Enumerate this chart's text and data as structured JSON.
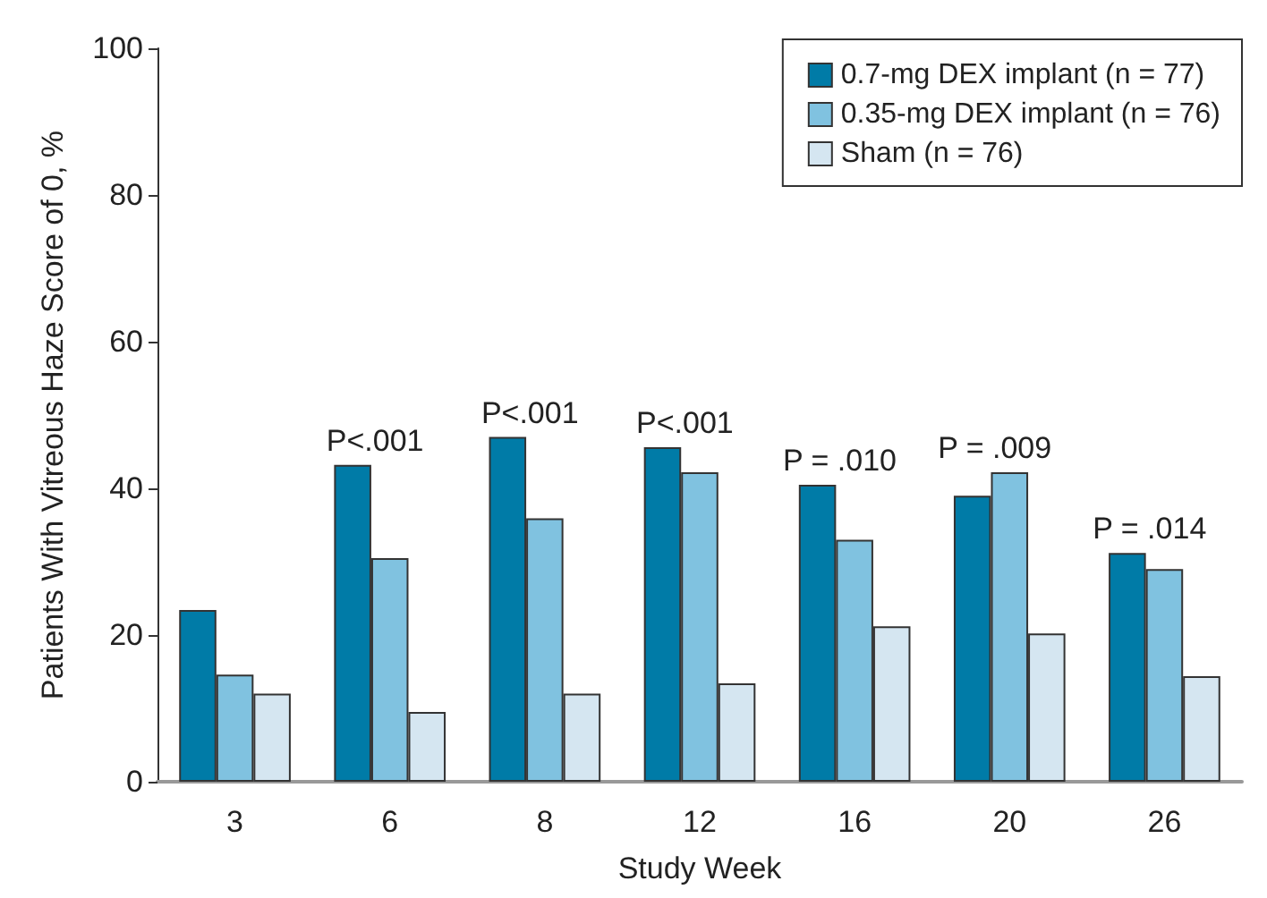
{
  "chart_data": {
    "type": "bar",
    "xlabel": "Study Week",
    "ylabel": "Patients With Vitreous Haze Score of 0, %",
    "categories": [
      "3",
      "6",
      "8",
      "12",
      "16",
      "20",
      "26"
    ],
    "series": [
      {
        "name": "0.7-mg DEX implant (n = 77)",
        "color": "#007ba7",
        "values": [
          23.4,
          43.2,
          47,
          45.6,
          40.5,
          39,
          31.2
        ]
      },
      {
        "name": "0.35-mg DEX implant (n = 76)",
        "color": "#80c2e0",
        "values": [
          14.6,
          30.5,
          35.9,
          42.2,
          33,
          42.2,
          29
        ]
      },
      {
        "name": "Sham (n = 76)",
        "color": "#d5e6f1",
        "values": [
          12,
          9.5,
          12,
          13.4,
          21.2,
          20.2,
          14.4
        ]
      }
    ],
    "ylim": [
      0,
      100
    ],
    "yticks": [
      0,
      20,
      40,
      60,
      80,
      100
    ],
    "grid": false,
    "legend": "top right",
    "annotations": [
      "P<.001",
      "P<.001",
      "P<.001",
      "P = .010",
      "P = .009",
      "P = .014"
    ]
  }
}
